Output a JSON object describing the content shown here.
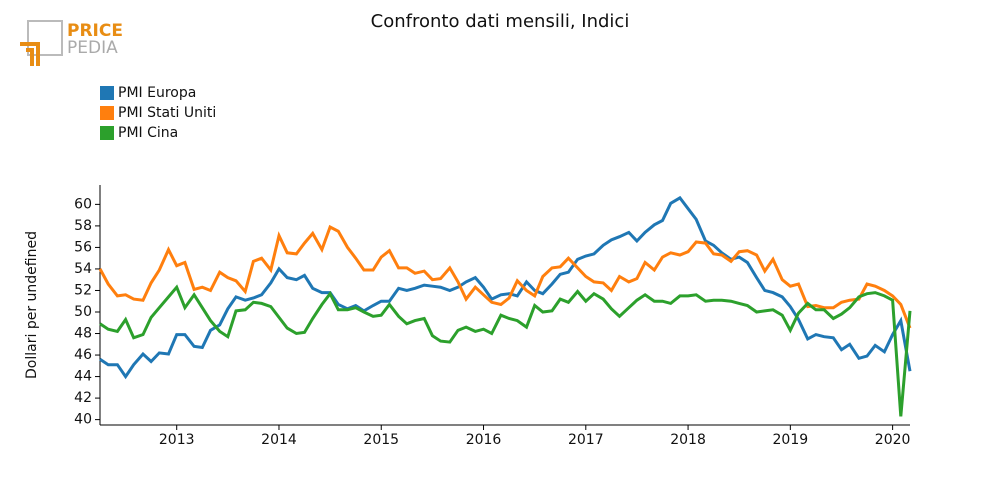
{
  "logo": {
    "line1": "PRICE",
    "line2": "PEDIA"
  },
  "chart_data": {
    "type": "line",
    "title": "Confronto dati mensili, Indici",
    "y_label": "Dollari per undefined",
    "x": [
      2012.25,
      2012.33,
      2012.42,
      2012.5,
      2012.58,
      2012.67,
      2012.75,
      2012.83,
      2012.92,
      2013,
      2013.08,
      2013.17,
      2013.25,
      2013.33,
      2013.42,
      2013.5,
      2013.58,
      2013.67,
      2013.75,
      2013.83,
      2013.92,
      2014,
      2014.08,
      2014.17,
      2014.25,
      2014.33,
      2014.42,
      2014.5,
      2014.58,
      2014.67,
      2014.75,
      2014.83,
      2014.92,
      2015,
      2015.08,
      2015.17,
      2015.25,
      2015.33,
      2015.42,
      2015.5,
      2015.58,
      2015.67,
      2015.75,
      2015.83,
      2015.92,
      2016,
      2016.08,
      2016.17,
      2016.25,
      2016.33,
      2016.42,
      2016.5,
      2016.58,
      2016.67,
      2016.75,
      2016.83,
      2016.92,
      2017,
      2017.08,
      2017.17,
      2017.25,
      2017.33,
      2017.42,
      2017.5,
      2017.58,
      2017.67,
      2017.75,
      2017.83,
      2017.92,
      2018,
      2018.08,
      2018.17,
      2018.25,
      2018.33,
      2018.42,
      2018.5,
      2018.58,
      2018.67,
      2018.75,
      2018.83,
      2018.92,
      2019,
      2019.08,
      2019.17,
      2019.25,
      2019.33,
      2019.42,
      2019.5,
      2019.58,
      2019.67,
      2019.75,
      2019.83,
      2019.92,
      2020,
      2020.08,
      2020.17
    ],
    "series": [
      {
        "name": "PMI Europa",
        "color": "#1f77b4",
        "values": [
          45.6,
          45.1,
          45.1,
          44.0,
          45.1,
          46.1,
          45.4,
          46.2,
          46.1,
          47.9,
          47.9,
          46.8,
          46.7,
          48.3,
          48.8,
          50.3,
          51.4,
          51.1,
          51.3,
          51.6,
          52.7,
          54.0,
          53.2,
          53.0,
          53.4,
          52.2,
          51.8,
          51.8,
          50.7,
          50.3,
          50.6,
          50.1,
          50.6,
          51.0,
          51.0,
          52.2,
          52.0,
          52.2,
          52.5,
          52.4,
          52.3,
          52.0,
          52.3,
          52.8,
          53.2,
          52.3,
          51.2,
          51.6,
          51.7,
          51.5,
          52.8,
          52.0,
          51.7,
          52.6,
          53.5,
          53.7,
          54.9,
          55.2,
          55.4,
          56.2,
          56.7,
          57.0,
          57.4,
          56.6,
          57.4,
          58.1,
          58.5,
          60.1,
          60.6,
          59.6,
          58.6,
          56.6,
          56.2,
          55.5,
          54.9,
          55.1,
          54.6,
          53.2,
          52.0,
          51.8,
          51.4,
          50.5,
          49.3,
          47.5,
          47.9,
          47.7,
          47.6,
          46.5,
          47.0,
          45.7,
          45.9,
          46.9,
          46.3,
          47.9,
          49.2,
          44.5
        ]
      },
      {
        "name": "PMI Stati Uniti",
        "color": "#ff7f0e",
        "values": [
          54.0,
          52.6,
          51.5,
          51.6,
          51.2,
          51.1,
          52.7,
          53.9,
          55.8,
          54.3,
          54.6,
          52.1,
          52.3,
          52.0,
          53.7,
          53.2,
          52.9,
          51.9,
          54.7,
          55.0,
          53.9,
          57.1,
          55.5,
          55.4,
          56.4,
          57.3,
          55.8,
          57.9,
          57.5,
          56.0,
          55.0,
          53.9,
          53.9,
          55.1,
          55.7,
          54.1,
          54.1,
          53.6,
          53.8,
          53.0,
          53.1,
          54.1,
          52.8,
          51.2,
          52.3,
          51.6,
          50.9,
          50.7,
          51.3,
          52.9,
          52.0,
          51.5,
          53.3,
          54.1,
          54.2,
          55.0,
          54.1,
          53.3,
          52.8,
          52.7,
          52.0,
          53.3,
          52.8,
          53.1,
          54.6,
          53.9,
          55.1,
          55.5,
          55.3,
          55.6,
          56.5,
          56.4,
          55.4,
          55.3,
          54.7,
          55.6,
          55.7,
          55.3,
          53.8,
          54.9,
          53.0,
          52.4,
          52.6,
          50.5,
          50.6,
          50.4,
          50.4,
          50.9,
          51.1,
          51.2,
          52.6,
          52.4,
          52.0,
          51.5,
          50.7,
          48.5
        ]
      },
      {
        "name": "PMI Cina",
        "color": "#2ca02c",
        "values": [
          48.9,
          48.4,
          48.2,
          49.3,
          47.6,
          47.9,
          49.5,
          50.4,
          51.4,
          52.3,
          50.4,
          51.6,
          50.4,
          49.2,
          48.2,
          47.7,
          50.1,
          50.2,
          50.9,
          50.8,
          50.5,
          49.5,
          48.5,
          48.0,
          48.1,
          49.4,
          50.7,
          51.7,
          50.2,
          50.2,
          50.4,
          50.0,
          49.6,
          49.7,
          50.7,
          49.6,
          48.9,
          49.2,
          49.4,
          47.8,
          47.3,
          47.2,
          48.3,
          48.6,
          48.2,
          48.4,
          48.0,
          49.7,
          49.4,
          49.2,
          48.6,
          50.6,
          50.0,
          50.1,
          51.2,
          50.9,
          51.9,
          51.0,
          51.7,
          51.2,
          50.3,
          49.6,
          50.4,
          51.1,
          51.6,
          51.0,
          51.0,
          50.8,
          51.5,
          51.5,
          51.6,
          51.0,
          51.1,
          51.1,
          51.0,
          50.8,
          50.6,
          50.0,
          50.1,
          50.2,
          49.7,
          48.3,
          49.9,
          50.8,
          50.2,
          50.2,
          49.4,
          49.8,
          50.4,
          51.4,
          51.7,
          51.8,
          51.5,
          51.1,
          40.3,
          50.1
        ]
      }
    ],
    "xlim": [
      2012.25,
      2020.17
    ],
    "xticks": [
      2013,
      2014,
      2015,
      2016,
      2017,
      2018,
      2019,
      2020
    ],
    "ylim": [
      39.5,
      61.8
    ],
    "yticks": [
      40,
      42,
      44,
      46,
      48,
      50,
      52,
      54,
      56,
      58,
      60
    ],
    "grid": false,
    "legend": "top-left"
  }
}
